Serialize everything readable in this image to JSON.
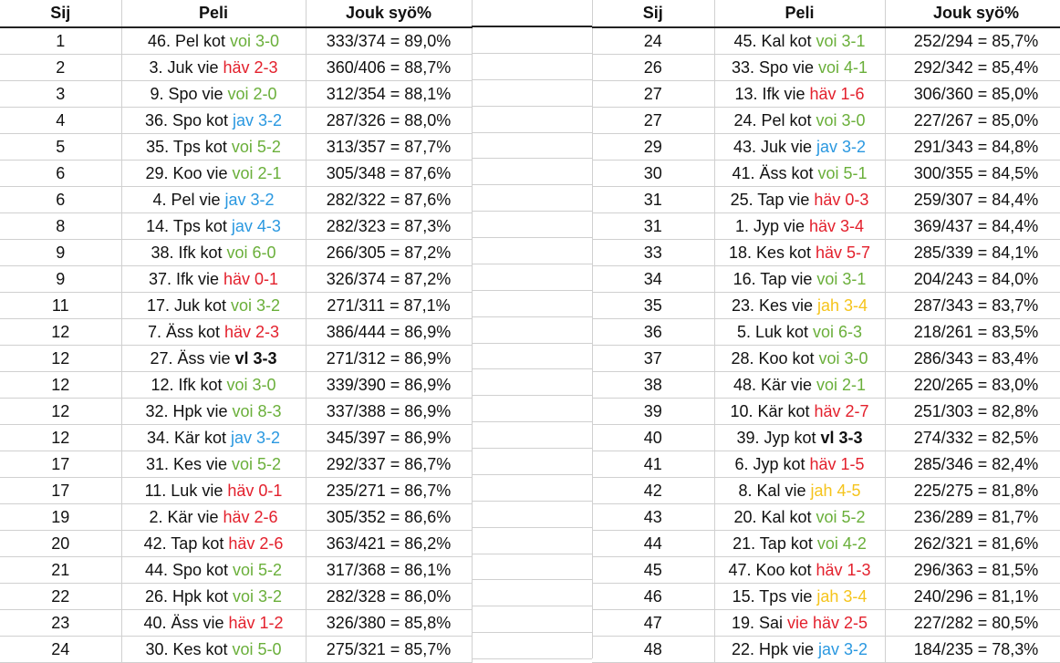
{
  "headers": {
    "rank": "Sij",
    "game": "Peli",
    "pct": "Jouk syö%"
  },
  "result_colors": {
    "voi": "#6aaf3a",
    "hav": "#e3202c",
    "jav": "#2a98e0",
    "jah": "#f5c41c",
    "vl": "#111111"
  },
  "left_rows": [
    {
      "rank": "1",
      "base": "46. Pel kot ",
      "result": "voi 3-0",
      "type": "voi",
      "pct": "333/374 = 89,0%"
    },
    {
      "rank": "2",
      "base": "3. Juk vie ",
      "result": "häv 2-3",
      "type": "hav",
      "pct": "360/406 = 88,7%"
    },
    {
      "rank": "3",
      "base": "9. Spo vie ",
      "result": "voi 2-0",
      "type": "voi",
      "pct": "312/354 = 88,1%"
    },
    {
      "rank": "4",
      "base": "36. Spo kot ",
      "result": "jav 3-2",
      "type": "jav",
      "pct": "287/326 = 88,0%"
    },
    {
      "rank": "5",
      "base": "35. Tps kot ",
      "result": "voi 5-2",
      "type": "voi",
      "pct": "313/357 = 87,7%"
    },
    {
      "rank": "6",
      "base": "29. Koo vie ",
      "result": "voi 2-1",
      "type": "voi",
      "pct": "305/348 = 87,6%"
    },
    {
      "rank": "6",
      "base": "4. Pel vie ",
      "result": "jav 3-2",
      "type": "jav",
      "pct": "282/322 = 87,6%"
    },
    {
      "rank": "8",
      "base": "14. Tps kot ",
      "result": "jav 4-3",
      "type": "jav",
      "pct": "282/323 = 87,3%"
    },
    {
      "rank": "9",
      "base": "38. Ifk kot ",
      "result": "voi 6-0",
      "type": "voi",
      "pct": "266/305 = 87,2%"
    },
    {
      "rank": "9",
      "base": "37. Ifk vie ",
      "result": "häv 0-1",
      "type": "hav",
      "pct": "326/374 = 87,2%"
    },
    {
      "rank": "11",
      "base": "17. Juk kot ",
      "result": "voi 3-2",
      "type": "voi",
      "pct": "271/311 = 87,1%"
    },
    {
      "rank": "12",
      "base": "7. Äss kot ",
      "result": "häv 2-3",
      "type": "hav",
      "pct": "386/444 = 86,9%"
    },
    {
      "rank": "12",
      "base": "27. Äss vie ",
      "result": "vl 3-3",
      "type": "vl",
      "pct": "271/312 = 86,9%"
    },
    {
      "rank": "12",
      "base": "12. Ifk kot ",
      "result": "voi 3-0",
      "type": "voi",
      "pct": "339/390 = 86,9%"
    },
    {
      "rank": "12",
      "base": "32. Hpk vie ",
      "result": "voi 8-3",
      "type": "voi",
      "pct": "337/388 = 86,9%"
    },
    {
      "rank": "12",
      "base": "34. Kär kot ",
      "result": "jav 3-2",
      "type": "jav",
      "pct": "345/397 = 86,9%"
    },
    {
      "rank": "17",
      "base": "31. Kes vie ",
      "result": "voi 5-2",
      "type": "voi",
      "pct": "292/337 = 86,7%"
    },
    {
      "rank": "17",
      "base": "11. Luk vie ",
      "result": "häv 0-1",
      "type": "hav",
      "pct": "235/271 = 86,7%"
    },
    {
      "rank": "19",
      "base": "2. Kär vie ",
      "result": "häv 2-6",
      "type": "hav",
      "pct": "305/352 = 86,6%"
    },
    {
      "rank": "20",
      "base": "42. Tap kot ",
      "result": "häv 2-6",
      "type": "hav",
      "pct": "363/421 = 86,2%"
    },
    {
      "rank": "21",
      "base": "44. Spo kot ",
      "result": "voi 5-2",
      "type": "voi",
      "pct": "317/368 = 86,1%"
    },
    {
      "rank": "22",
      "base": "26. Hpk kot ",
      "result": "voi 3-2",
      "type": "voi",
      "pct": "282/328 = 86,0%"
    },
    {
      "rank": "23",
      "base": "40. Äss vie ",
      "result": "häv 1-2",
      "type": "hav",
      "pct": "326/380 = 85,8%"
    },
    {
      "rank": "24",
      "base": "30. Kes kot ",
      "result": "voi 5-0",
      "type": "voi",
      "pct": "275/321 = 85,7%"
    }
  ],
  "right_rows": [
    {
      "rank": "24",
      "base": "45. Kal kot ",
      "result": "voi 3-1",
      "type": "voi",
      "pct": "252/294 = 85,7%"
    },
    {
      "rank": "26",
      "base": "33. Spo vie ",
      "result": "voi 4-1",
      "type": "voi",
      "pct": "292/342 = 85,4%"
    },
    {
      "rank": "27",
      "base": "13. Ifk vie ",
      "result": "häv 1-6",
      "type": "hav",
      "pct": "306/360 = 85,0%"
    },
    {
      "rank": "27",
      "base": "24. Pel kot ",
      "result": "voi 3-0",
      "type": "voi",
      "pct": "227/267 = 85,0%"
    },
    {
      "rank": "29",
      "base": "43. Juk vie ",
      "result": "jav 3-2",
      "type": "jav",
      "pct": "291/343 = 84,8%"
    },
    {
      "rank": "30",
      "base": "41. Äss kot ",
      "result": "voi 5-1",
      "type": "voi",
      "pct": "300/355 = 84,5%"
    },
    {
      "rank": "31",
      "base": "25. Tap vie ",
      "result": "häv 0-3",
      "type": "hav",
      "pct": "259/307 = 84,4%"
    },
    {
      "rank": "31",
      "base": "1. Jyp vie ",
      "result": "häv 3-4",
      "type": "hav",
      "pct": "369/437 = 84,4%"
    },
    {
      "rank": "33",
      "base": "18. Kes kot ",
      "result": "häv 5-7",
      "type": "hav",
      "pct": "285/339 = 84,1%"
    },
    {
      "rank": "34",
      "base": "16. Tap vie ",
      "result": "voi 3-1",
      "type": "voi",
      "pct": "204/243 = 84,0%"
    },
    {
      "rank": "35",
      "base": "23. Kes vie ",
      "result": "jah 3-4",
      "type": "jah",
      "pct": "287/343 = 83,7%"
    },
    {
      "rank": "36",
      "base": "5. Luk kot ",
      "result": "voi 6-3",
      "type": "voi",
      "pct": "218/261 = 83,5%"
    },
    {
      "rank": "37",
      "base": "28. Koo kot ",
      "result": "voi 3-0",
      "type": "voi",
      "pct": "286/343 = 83,4%"
    },
    {
      "rank": "38",
      "base": "48. Kär vie ",
      "result": "voi 2-1",
      "type": "voi",
      "pct": "220/265 = 83,0%"
    },
    {
      "rank": "39",
      "base": "10. Kär kot ",
      "result": "häv 2-7",
      "type": "hav",
      "pct": "251/303 = 82,8%"
    },
    {
      "rank": "40",
      "base": "39. Jyp kot ",
      "result": "vl 3-3",
      "type": "vl",
      "pct": "274/332 = 82,5%"
    },
    {
      "rank": "41",
      "base": "6. Jyp kot ",
      "result": "häv 1-5",
      "type": "hav",
      "pct": "285/346 = 82,4%"
    },
    {
      "rank": "42",
      "base": "8. Kal vie ",
      "result": "jah 4-5",
      "type": "jah",
      "pct": "225/275 = 81,8%"
    },
    {
      "rank": "43",
      "base": "20. Kal kot ",
      "result": "voi 5-2",
      "type": "voi",
      "pct": "236/289 = 81,7%"
    },
    {
      "rank": "44",
      "base": "21. Tap kot ",
      "result": "voi 4-2",
      "type": "voi",
      "pct": "262/321 = 81,6%"
    },
    {
      "rank": "45",
      "base": "47. Koo kot ",
      "result": "häv 1-3",
      "type": "hav",
      "pct": "296/363 = 81,5%"
    },
    {
      "rank": "46",
      "base": "15. Tps vie ",
      "result": "jah 3-4",
      "type": "jah",
      "pct": "240/296 = 81,1%"
    },
    {
      "rank": "47",
      "base": "19. Sai ",
      "result": "vie häv 2-5",
      "type": "hav",
      "pct": "227/282 = 80,5%"
    },
    {
      "rank": "48",
      "base": "22. Hpk vie ",
      "result": "jav 3-2",
      "type": "jav",
      "pct": "184/235 = 78,3%"
    }
  ]
}
